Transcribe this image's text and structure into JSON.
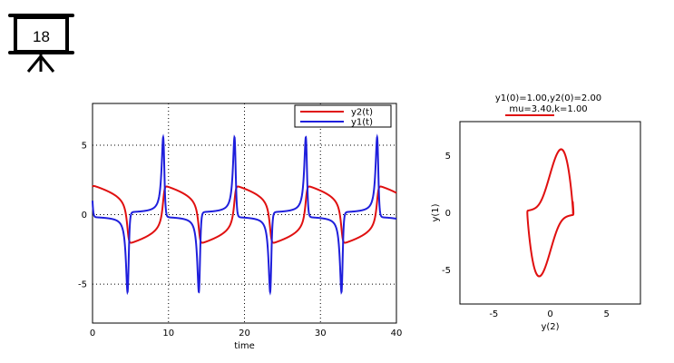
{
  "slide": {
    "number": "18"
  },
  "colors": {
    "y1": "#1f1fdc",
    "y2": "#e01010",
    "phase": "#e01010"
  },
  "chart_data": [
    {
      "type": "line",
      "title": "",
      "xlabel": "time",
      "ylabel": "",
      "xlim": [
        0,
        40
      ],
      "ylim": [
        -7.8,
        8
      ],
      "xticks": [
        0,
        10,
        20,
        30,
        40
      ],
      "yticks": [
        -5,
        0,
        5
      ],
      "grid": "dotted",
      "legend": "top-right",
      "series": [
        {
          "name": "y2(t)",
          "color": "#e01010",
          "initial": 2.0
        },
        {
          "name": "y1(t)",
          "color": "#1f1fdc",
          "initial": 1.0
        }
      ],
      "period": 9.34,
      "amplitude_y1": [
        -5.5,
        5.5
      ],
      "amplitude_y2": [
        -2.05,
        2.05
      ]
    },
    {
      "type": "line",
      "title": "y1(0)=1.00,y2(0)=2.00",
      "subtitle": "mu=3.40,k=1.00",
      "xlabel": "y(2)",
      "ylabel": "y(1)",
      "xlim": [
        -8,
        8
      ],
      "ylim": [
        -8,
        8
      ],
      "xticks": [
        -5,
        0,
        5
      ],
      "yticks": [
        -5,
        0,
        5
      ],
      "grid": "off",
      "parameters": {
        "mu": 3.4,
        "k": 1.0,
        "y1_0": 1.0,
        "y2_0": 2.0,
        "t_end": 40
      }
    }
  ]
}
